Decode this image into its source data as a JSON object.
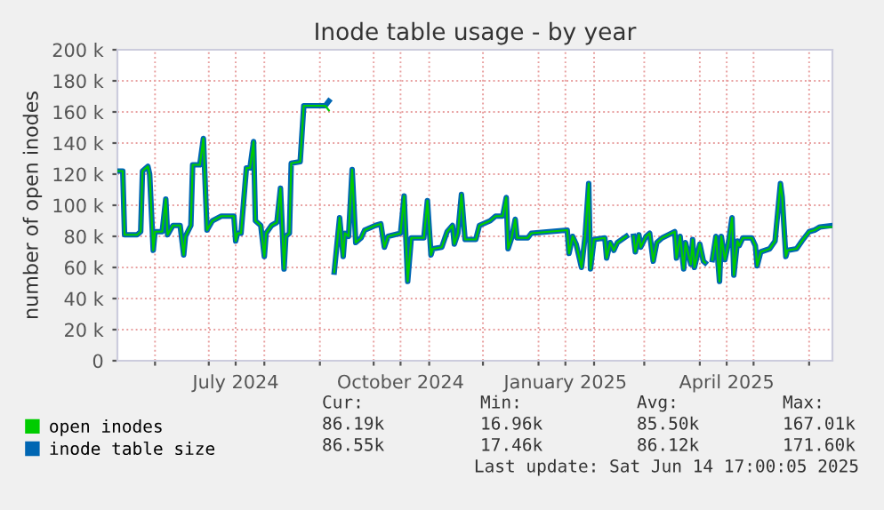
{
  "chart_data": {
    "type": "line",
    "title": "Inode table usage - by year",
    "ylabel": "number of open inodes",
    "x": [
      "2024-05-11",
      "2024-05-14",
      "2024-05-15",
      "2024-05-22",
      "2024-05-24",
      "2024-05-25",
      "2024-05-28",
      "2024-05-29",
      "2024-05-31",
      "2024-06-01",
      "2024-06-05",
      "2024-06-07",
      "2024-06-08",
      "2024-06-11",
      "2024-06-15",
      "2024-06-17",
      "2024-06-18",
      "2024-06-21",
      "2024-06-22",
      "2024-06-26",
      "2024-06-28",
      "2024-06-30",
      "2024-07-03",
      "2024-07-08",
      "2024-07-15",
      "2024-07-16",
      "2024-07-17",
      "2024-07-19",
      "2024-07-22",
      "2024-07-24",
      "2024-07-26",
      "2024-07-27",
      "2024-07-30",
      "2024-08-01",
      "2024-08-02",
      "2024-08-05",
      "2024-08-08",
      "2024-08-10",
      "2024-08-12",
      "2024-08-13",
      "2024-08-15",
      "2024-08-16",
      "2024-08-21",
      "2024-08-23",
      "2024-09-04",
      "2024-09-06",
      "2024-09-07",
      "2024-09-09",
      "2024-09-12",
      "2024-09-14",
      "2024-09-15",
      "2024-09-17",
      "2024-09-19",
      "2024-09-21",
      "2024-09-24",
      "2024-09-26",
      "2024-10-02",
      "2024-10-05",
      "2024-10-07",
      "2024-10-09",
      "2024-10-16",
      "2024-10-18",
      "2024-10-20",
      "2024-10-22",
      "2024-10-29",
      "2024-10-31",
      "2024-11-02",
      "2024-11-03",
      "2024-11-08",
      "2024-11-11",
      "2024-11-14",
      "2024-11-15",
      "2024-11-17",
      "2024-11-19",
      "2024-11-21",
      "2024-11-27",
      "2024-11-29",
      "2024-12-05",
      "2024-12-08",
      "2024-12-12",
      "2024-12-14",
      "2024-12-15",
      "2024-12-17",
      "2024-12-19",
      "2024-12-20",
      "2024-12-26",
      "2024-12-28",
      "2025-01-17",
      "2025-01-18",
      "2025-01-20",
      "2025-01-22",
      "2025-01-25",
      "2025-01-27",
      "2025-01-29",
      "2025-01-30",
      "2025-02-01",
      "2025-02-07",
      "2025-02-08",
      "2025-02-10",
      "2025-02-12",
      "2025-02-14",
      "2025-02-19",
      "2025-02-21",
      "2025-02-23",
      "2025-02-24",
      "2025-02-26",
      "2025-02-27",
      "2025-03-02",
      "2025-03-04",
      "2025-03-06",
      "2025-03-08",
      "2025-03-11",
      "2025-03-18",
      "2025-03-19",
      "2025-03-21",
      "2025-03-23",
      "2025-03-24",
      "2025-03-27",
      "2025-03-28",
      "2025-03-29",
      "2025-04-01",
      "2025-04-03",
      "2025-04-04",
      "2025-04-07",
      "2025-04-08",
      "2025-04-10",
      "2025-04-12",
      "2025-04-13",
      "2025-04-15",
      "2025-04-17",
      "2025-04-19",
      "2025-04-20",
      "2025-04-22",
      "2025-04-23",
      "2025-04-25",
      "2025-04-30",
      "2025-05-02",
      "2025-05-03",
      "2025-05-05",
      "2025-05-10",
      "2025-05-13",
      "2025-05-16",
      "2025-05-17",
      "2025-05-19",
      "2025-05-20",
      "2025-05-25",
      "2025-05-28",
      "2025-06-01",
      "2025-06-04",
      "2025-06-07",
      "2025-06-14"
    ],
    "series": [
      {
        "name": "open inodes",
        "color": "#00cc00",
        "values": [
          122000,
          122000,
          81000,
          81000,
          83000,
          122000,
          125000,
          120000,
          71000,
          83000,
          83000,
          104000,
          81000,
          87000,
          87000,
          68000,
          80000,
          87000,
          126000,
          126000,
          143000,
          84000,
          90000,
          93000,
          93000,
          77000,
          82000,
          82000,
          124000,
          124000,
          141000,
          90000,
          87000,
          67000,
          82000,
          87000,
          89000,
          111000,
          59000,
          80000,
          82000,
          127000,
          128000,
          164000,
          164000,
          161000,
          null,
          57000,
          92000,
          67000,
          82000,
          80000,
          123000,
          76000,
          79000,
          84000,
          87000,
          88000,
          73000,
          80000,
          82000,
          106000,
          51000,
          79000,
          79000,
          103000,
          68000,
          72000,
          73000,
          83000,
          87000,
          75000,
          82000,
          107000,
          78000,
          78000,
          87000,
          90000,
          93000,
          93000,
          105000,
          72000,
          79000,
          91000,
          79000,
          79000,
          82000,
          84000,
          69000,
          80000,
          75000,
          60000,
          80000,
          114000,
          59000,
          78000,
          79000,
          66000,
          76000,
          71000,
          76000,
          80000,
          null,
          80000,
          70000,
          81000,
          73000,
          80000,
          82000,
          64000,
          76000,
          79000,
          83000,
          66000,
          80000,
          59000,
          76000,
          62000,
          78000,
          60000,
          75000,
          64000,
          63000,
          null,
          65000,
          80000,
          51000,
          80000,
          65000,
          76000,
          92000,
          55000,
          77000,
          74000,
          79000,
          79000,
          74000,
          61000,
          70000,
          72000,
          77000,
          114000,
          105000,
          67000,
          71000,
          72000,
          77000,
          83000,
          84000,
          86000,
          86000
        ]
      },
      {
        "name": "inode table size",
        "color": "#0066b3",
        "values": [
          122000,
          122000,
          81000,
          81000,
          83000,
          122000,
          125000,
          120000,
          71000,
          83000,
          83000,
          104000,
          81000,
          87000,
          87000,
          68000,
          80000,
          87000,
          126000,
          126000,
          143000,
          84000,
          90000,
          93000,
          93000,
          77000,
          82000,
          82000,
          124000,
          124000,
          141000,
          90000,
          87000,
          67000,
          82000,
          87000,
          89000,
          111000,
          59000,
          80000,
          82000,
          127000,
          128000,
          164000,
          164000,
          167000,
          null,
          57000,
          92000,
          67000,
          82000,
          80000,
          123000,
          76000,
          79000,
          84000,
          87000,
          88000,
          73000,
          80000,
          82000,
          106000,
          51000,
          79000,
          79000,
          103000,
          68000,
          72000,
          73000,
          83000,
          87000,
          75000,
          82000,
          107000,
          78000,
          78000,
          87000,
          90000,
          93000,
          93000,
          105000,
          72000,
          79000,
          91000,
          79000,
          79000,
          82000,
          84000,
          69000,
          80000,
          75000,
          60000,
          80000,
          114000,
          59000,
          78000,
          79000,
          66000,
          76000,
          71000,
          76000,
          80000,
          null,
          80000,
          70000,
          81000,
          73000,
          80000,
          82000,
          64000,
          76000,
          79000,
          83000,
          66000,
          80000,
          59000,
          76000,
          62000,
          78000,
          60000,
          75000,
          64000,
          63000,
          null,
          65000,
          80000,
          51000,
          80000,
          65000,
          76000,
          92000,
          55000,
          77000,
          74000,
          79000,
          79000,
          74000,
          61000,
          70000,
          72000,
          77000,
          114000,
          105000,
          67000,
          71000,
          72000,
          77000,
          83000,
          84000,
          86000,
          87000
        ]
      }
    ],
    "xlim": [
      "2024-05-11",
      "2025-06-14"
    ],
    "xticks": [
      {
        "value": "2024-06-01",
        "label": null
      },
      {
        "value": "2024-07-01",
        "label": null
      },
      {
        "value": "2024-07-16",
        "label": "July 2024"
      },
      {
        "value": "2024-08-01",
        "label": null
      },
      {
        "value": "2024-09-01",
        "label": null
      },
      {
        "value": "2024-10-01",
        "label": null
      },
      {
        "value": "2024-10-16",
        "label": "October 2024"
      },
      {
        "value": "2024-11-01",
        "label": null
      },
      {
        "value": "2024-12-01",
        "label": null
      },
      {
        "value": "2025-01-01",
        "label": null
      },
      {
        "value": "2025-01-16",
        "label": "January 2025"
      },
      {
        "value": "2025-02-01",
        "label": null
      },
      {
        "value": "2025-03-01",
        "label": null
      },
      {
        "value": "2025-04-01",
        "label": null
      },
      {
        "value": "2025-04-16",
        "label": "April 2025"
      },
      {
        "value": "2025-05-01",
        "label": null
      },
      {
        "value": "2025-06-01",
        "label": null
      }
    ],
    "ylim": [
      0,
      200000
    ],
    "yticks": [
      0,
      {
        "value": 20000,
        "label": "20 k"
      },
      {
        "value": 40000,
        "label": "40 k"
      },
      {
        "value": 60000,
        "label": "60 k"
      },
      {
        "value": 80000,
        "label": "80 k"
      },
      {
        "value": 100000,
        "label": "100 k"
      },
      {
        "value": 120000,
        "label": "120 k"
      },
      {
        "value": 140000,
        "label": "140 k"
      },
      {
        "value": 160000,
        "label": "160 k"
      },
      {
        "value": 180000,
        "label": "180 k"
      },
      {
        "value": 200000,
        "label": "200 k"
      }
    ],
    "grid": true,
    "legend": "bottom",
    "line_style": "solid",
    "marker": "none",
    "annotations": [
      "Cur:",
      "Min:",
      "Avg:",
      "Max:",
      "86.19k",
      "16.96k",
      "85.50k",
      "167.01k",
      "86.55k",
      "17.46k",
      "86.12k",
      "171.60k",
      "Last update: Sat Jun 14 17:00:05 2025"
    ]
  }
}
